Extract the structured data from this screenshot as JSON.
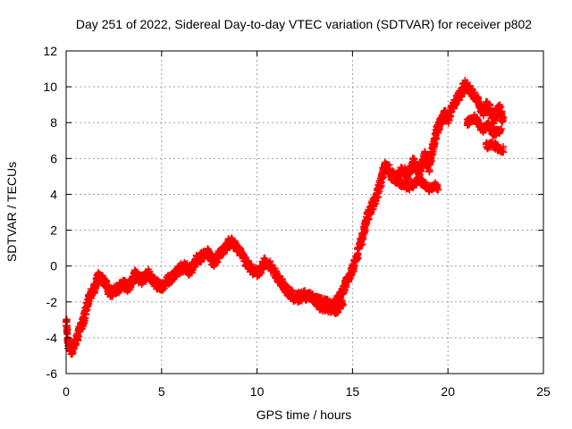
{
  "chart_data": {
    "type": "scatter",
    "title": "Day 251 of 2022, Sidereal Day-to-day VTEC variation (SDTVAR) for receiver p802",
    "xlabel": "GPS time / hours",
    "ylabel": "SDTVAR / TECUs",
    "xlim": [
      0,
      25
    ],
    "ylim": [
      -6,
      12
    ],
    "x_ticks": [
      0,
      5,
      10,
      15,
      20,
      25
    ],
    "y_ticks": [
      -6,
      -4,
      -2,
      0,
      2,
      4,
      6,
      8,
      10,
      12
    ],
    "grid": true,
    "marker": "+",
    "marker_color": "#ff0000",
    "series": [
      {
        "name": "SDTVAR",
        "trend": [
          [
            0.0,
            -3.0
          ],
          [
            0.1,
            -4.3
          ],
          [
            0.3,
            -4.8
          ],
          [
            0.5,
            -4.2
          ],
          [
            0.7,
            -3.6
          ],
          [
            0.9,
            -3.0
          ],
          [
            1.1,
            -2.2
          ],
          [
            1.3,
            -1.5
          ],
          [
            1.5,
            -1.2
          ],
          [
            1.7,
            -0.6
          ],
          [
            2.0,
            -0.8
          ],
          [
            2.3,
            -1.5
          ],
          [
            2.7,
            -1.3
          ],
          [
            3.0,
            -1.0
          ],
          [
            3.3,
            -1.2
          ],
          [
            3.6,
            -0.5
          ],
          [
            4.0,
            -0.8
          ],
          [
            4.3,
            -0.4
          ],
          [
            4.6,
            -0.9
          ],
          [
            5.0,
            -1.2
          ],
          [
            5.3,
            -0.8
          ],
          [
            5.6,
            -0.6
          ],
          [
            5.9,
            -0.2
          ],
          [
            6.2,
            0.0
          ],
          [
            6.5,
            -0.3
          ],
          [
            6.8,
            0.3
          ],
          [
            7.1,
            0.5
          ],
          [
            7.4,
            0.8
          ],
          [
            7.7,
            0.2
          ],
          [
            8.0,
            0.6
          ],
          [
            8.3,
            1.0
          ],
          [
            8.6,
            1.4
          ],
          [
            8.9,
            1.1
          ],
          [
            9.2,
            0.6
          ],
          [
            9.5,
            0.1
          ],
          [
            9.8,
            -0.3
          ],
          [
            10.1,
            -0.4
          ],
          [
            10.4,
            0.2
          ],
          [
            10.7,
            0.0
          ],
          [
            11.0,
            -0.5
          ],
          [
            11.3,
            -0.9
          ],
          [
            11.6,
            -1.4
          ],
          [
            12.0,
            -1.8
          ],
          [
            12.5,
            -1.6
          ],
          [
            13.0,
            -1.9
          ],
          [
            13.3,
            -2.0
          ],
          [
            13.6,
            -2.1
          ],
          [
            14.0,
            -2.2
          ],
          [
            14.3,
            -1.8
          ],
          [
            14.6,
            -1.1
          ],
          [
            14.9,
            -0.5
          ],
          [
            15.2,
            0.5
          ],
          [
            15.5,
            1.5
          ],
          [
            15.7,
            2.5
          ],
          [
            15.9,
            3.0
          ],
          [
            16.1,
            3.5
          ],
          [
            16.3,
            4.0
          ],
          [
            16.5,
            4.8
          ],
          [
            16.7,
            5.6
          ],
          [
            17.0,
            5.3
          ],
          [
            17.3,
            4.8
          ],
          [
            17.6,
            5.4
          ],
          [
            17.9,
            5.0
          ],
          [
            18.2,
            5.8
          ],
          [
            18.5,
            5.2
          ],
          [
            18.8,
            6.2
          ],
          [
            19.0,
            5.5
          ],
          [
            19.2,
            6.5
          ],
          [
            19.4,
            7.5
          ],
          [
            19.6,
            8.0
          ],
          [
            19.8,
            8.5
          ],
          [
            20.0,
            8.2
          ],
          [
            20.3,
            9.0
          ],
          [
            20.6,
            9.5
          ],
          [
            20.9,
            10.1
          ],
          [
            21.2,
            9.8
          ],
          [
            21.5,
            9.3
          ],
          [
            21.8,
            8.6
          ],
          [
            22.1,
            9.0
          ],
          [
            22.4,
            8.2
          ],
          [
            22.7,
            8.8
          ],
          [
            22.9,
            8.0
          ]
        ],
        "branches": [
          [
            [
              17.0,
              5.0
            ],
            [
              17.5,
              4.6
            ],
            [
              18.0,
              4.4
            ],
            [
              18.5,
              4.8
            ],
            [
              19.0,
              4.3
            ],
            [
              19.3,
              4.5
            ],
            [
              19.5,
              4.4
            ]
          ],
          [
            [
              21.0,
              8.0
            ],
            [
              21.4,
              8.3
            ],
            [
              21.8,
              7.6
            ],
            [
              22.1,
              7.9
            ],
            [
              22.4,
              7.4
            ],
            [
              22.8,
              7.6
            ]
          ],
          [
            [
              22.0,
              6.7
            ],
            [
              22.3,
              6.8
            ],
            [
              22.6,
              6.6
            ],
            [
              22.9,
              6.5
            ]
          ],
          [
            [
              12.8,
              -1.6
            ],
            [
              13.3,
              -2.3
            ],
            [
              13.8,
              -2.4
            ],
            [
              14.2,
              -2.5
            ],
            [
              14.5,
              -2.0
            ]
          ]
        ]
      }
    ]
  }
}
